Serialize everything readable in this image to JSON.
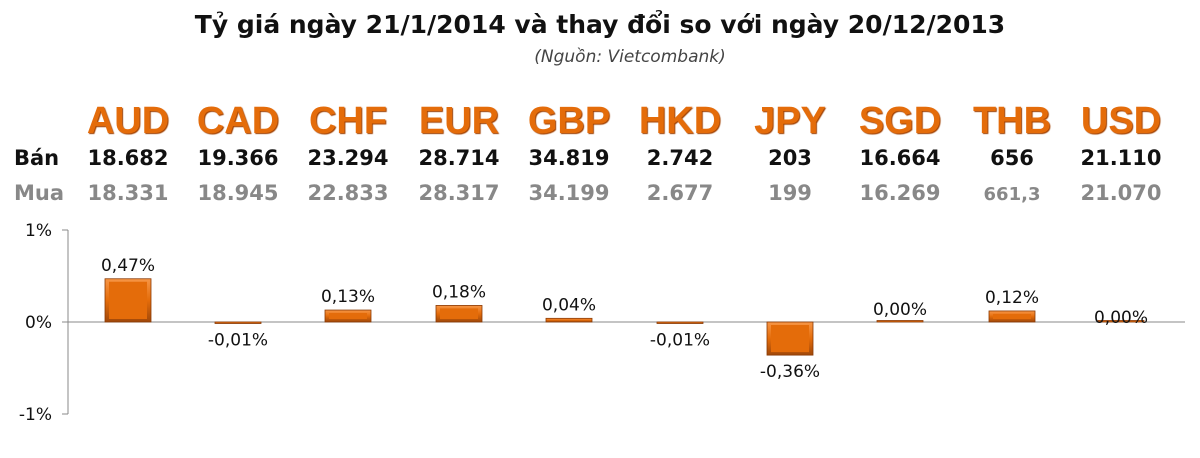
{
  "title": "Tỷ giá ngày 21/1/2014 và thay đổi so với ngày 20/12/2013",
  "subtitle": "(Nguồn: Vietcombank)",
  "rows": {
    "sell_label": "Bán",
    "buy_label": "Mua"
  },
  "currencies": [
    {
      "code": "AUD",
      "sell": "18.682",
      "buy": "18.331"
    },
    {
      "code": "CAD",
      "sell": "19.366",
      "buy": "18.945"
    },
    {
      "code": "CHF",
      "sell": "23.294",
      "buy": "22.833"
    },
    {
      "code": "EUR",
      "sell": "28.714",
      "buy": "28.317"
    },
    {
      "code": "GBP",
      "sell": "34.819",
      "buy": "34.199"
    },
    {
      "code": "HKD",
      "sell": "2.742",
      "buy": "2.677"
    },
    {
      "code": "JPY",
      "sell": "203",
      "buy": "199"
    },
    {
      "code": "SGD",
      "sell": "16.664",
      "buy": "16.269"
    },
    {
      "code": "THB",
      "sell": "656",
      "buy": "661,3"
    },
    {
      "code": "USD",
      "sell": "21.110",
      "buy": "21.070"
    }
  ],
  "chart_data": {
    "type": "bar",
    "categories": [
      "AUD",
      "CAD",
      "CHF",
      "EUR",
      "GBP",
      "HKD",
      "JPY",
      "SGD",
      "THB",
      "USD"
    ],
    "values": [
      0.47,
      -0.01,
      0.13,
      0.18,
      0.04,
      -0.01,
      -0.36,
      0.0,
      0.12,
      0.0
    ],
    "data_labels": [
      "0,47%",
      "-0,01%",
      "0,13%",
      "0,18%",
      "0,04%",
      "-0,01%",
      "-0,36%",
      "0,00%",
      "0,12%",
      "0,00%"
    ],
    "yticks": [
      "1%",
      "0%",
      "-1%"
    ],
    "ylim": [
      -1,
      1
    ],
    "ylabel": "",
    "xlabel": "",
    "bar_color": "#e46c0a"
  }
}
